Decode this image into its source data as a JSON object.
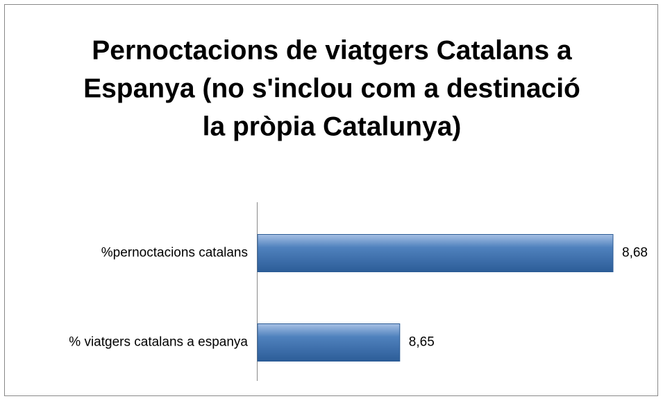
{
  "chart_data": {
    "type": "bar",
    "orientation": "horizontal",
    "title": [
      "Pernoctacions de viatgers Catalans a",
      "Espanya (no s'inclou com a destinació",
      "la pròpia Catalunya)"
    ],
    "categories": [
      "%pernoctacions catalans",
      "% viatgers catalans a espanya"
    ],
    "values": [
      8.68,
      8.65
    ],
    "value_labels": [
      "8,68",
      "8,65"
    ],
    "color": "#4f81bd",
    "xlim": [
      8.63,
      8.68
    ]
  }
}
